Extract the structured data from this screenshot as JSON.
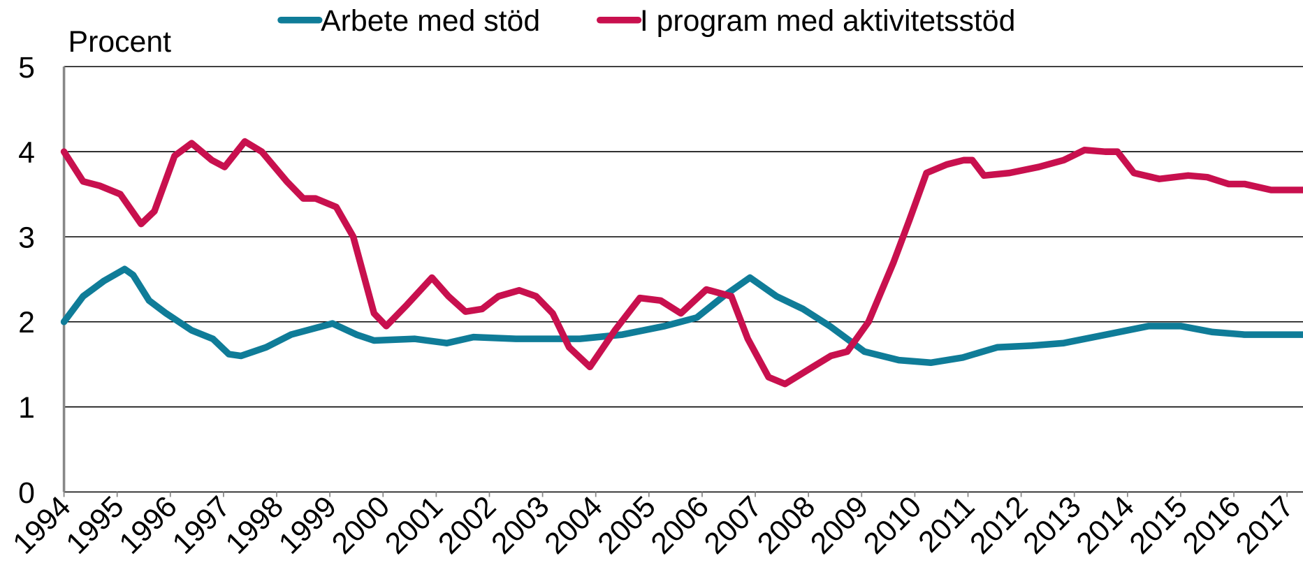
{
  "chart_data": {
    "type": "line",
    "y_label": "Procent",
    "xlim": [
      1994,
      2017.3
    ],
    "xticks": [
      1994,
      1995,
      1996,
      1997,
      1998,
      1999,
      2000,
      2001,
      2002,
      2003,
      2004,
      2005,
      2006,
      2007,
      2008,
      2009,
      2010,
      2011,
      2012,
      2013,
      2014,
      2015,
      2016,
      2017
    ],
    "ylim": [
      0,
      5
    ],
    "yticks": [
      0,
      1,
      2,
      3,
      4,
      5
    ],
    "grid": true,
    "legend": "top",
    "series": [
      {
        "name": "Arbete med stöd",
        "color": "#0f7c98",
        "x": [
          1994,
          1994.36,
          1994.75,
          1995.14,
          1995.3,
          1995.6,
          1995.92,
          1996.4,
          1996.8,
          1997.1,
          1997.33,
          1997.8,
          1998.27,
          1999.05,
          1999.5,
          1999.83,
          2000.6,
          2001.2,
          2001.7,
          2002.5,
          2003.1,
          2003.7,
          2004.5,
          2005.3,
          2005.9,
          2006.4,
          2006.9,
          2007.4,
          2007.9,
          2008.4,
          2009.05,
          2009.7,
          2010.3,
          2010.9,
          2011.55,
          2012.2,
          2012.8,
          2013.6,
          2014.4,
          2015.0,
          2015.6,
          2016.2,
          2017.3
        ],
        "values": [
          2.0,
          2.3,
          2.48,
          2.62,
          2.55,
          2.25,
          2.1,
          1.9,
          1.8,
          1.62,
          1.6,
          1.7,
          1.85,
          1.98,
          1.85,
          1.78,
          1.8,
          1.75,
          1.82,
          1.8,
          1.8,
          1.8,
          1.85,
          1.95,
          2.05,
          2.3,
          2.52,
          2.3,
          2.15,
          1.95,
          1.65,
          1.55,
          1.52,
          1.58,
          1.7,
          1.72,
          1.75,
          1.85,
          1.95,
          1.95,
          1.88,
          1.85,
          1.85
        ]
      },
      {
        "name": "I program med aktivitetsstöd",
        "color": "#c8104e",
        "x": [
          1994,
          1994.36,
          1994.67,
          1995.06,
          1995.45,
          1995.7,
          1996.08,
          1996.4,
          1996.78,
          1997.02,
          1997.4,
          1997.72,
          1998.19,
          1998.5,
          1998.73,
          1999.12,
          1999.44,
          1999.83,
          2000.06,
          2000.45,
          2000.92,
          2001.23,
          2001.55,
          2001.86,
          2002.17,
          2002.56,
          2002.88,
          2003.19,
          2003.5,
          2003.89,
          2004.36,
          2004.83,
          2005.22,
          2005.6,
          2006.08,
          2006.55,
          2006.86,
          2007.25,
          2007.56,
          2008.03,
          2008.42,
          2008.73,
          2009.13,
          2009.6,
          2009.9,
          2010.22,
          2010.6,
          2010.92,
          2011.08,
          2011.3,
          2011.78,
          2012.33,
          2012.8,
          2013.19,
          2013.58,
          2013.81,
          2014.12,
          2014.6,
          2015.14,
          2015.5,
          2015.9,
          2016.2,
          2016.7,
          2017.3
        ],
        "values": [
          4.0,
          3.65,
          3.6,
          3.5,
          3.15,
          3.3,
          3.95,
          4.1,
          3.9,
          3.82,
          4.12,
          4.0,
          3.65,
          3.45,
          3.45,
          3.35,
          3.0,
          2.1,
          1.95,
          2.2,
          2.52,
          2.3,
          2.12,
          2.15,
          2.3,
          2.37,
          2.3,
          2.1,
          1.7,
          1.47,
          1.9,
          2.28,
          2.25,
          2.1,
          2.38,
          2.3,
          1.8,
          1.35,
          1.27,
          1.45,
          1.6,
          1.65,
          2.0,
          2.7,
          3.2,
          3.75,
          3.85,
          3.9,
          3.9,
          3.72,
          3.75,
          3.82,
          3.9,
          4.02,
          4.0,
          4.0,
          3.75,
          3.68,
          3.72,
          3.7,
          3.62,
          3.62,
          3.55,
          3.55
        ]
      }
    ]
  }
}
